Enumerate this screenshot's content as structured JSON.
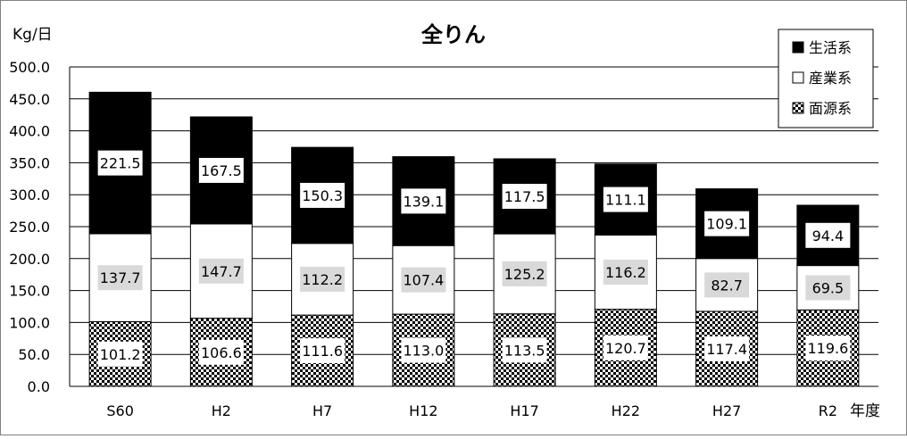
{
  "chart_data": {
    "type": "bar",
    "stacked": true,
    "title": "全りん",
    "ylabel": "Kg/日",
    "xlabel": "年度",
    "ylim": [
      0,
      500
    ],
    "yticks": [
      "0.0",
      "50.0",
      "100.0",
      "150.0",
      "200.0",
      "250.0",
      "300.0",
      "350.0",
      "400.0",
      "450.0",
      "500.0"
    ],
    "categories": [
      "S60",
      "H2",
      "H7",
      "H12",
      "H17",
      "H22",
      "H27",
      "R2"
    ],
    "series": [
      {
        "name": "面源系",
        "pattern": "checker",
        "values": [
          101.2,
          106.6,
          111.6,
          113.0,
          113.5,
          120.7,
          117.4,
          119.6
        ],
        "labels": [
          "101.2",
          "106.6",
          "111.6",
          "113.0",
          "113.5",
          "120.7",
          "117.4",
          "119.6"
        ]
      },
      {
        "name": "産業系",
        "pattern": "white",
        "values": [
          137.7,
          147.7,
          112.2,
          107.4,
          125.2,
          116.2,
          82.7,
          69.5
        ],
        "labels": [
          "137.7",
          "147.7",
          "112.2",
          "107.4",
          "125.2",
          "116.2",
          "82.7",
          "69.5"
        ]
      },
      {
        "name": "生活系",
        "pattern": "black",
        "values": [
          221.5,
          167.5,
          150.3,
          139.1,
          117.5,
          111.1,
          109.1,
          94.4
        ],
        "labels": [
          "221.5",
          "167.5",
          "150.3",
          "139.1",
          "117.5",
          "111.1",
          "109.1",
          "94.4"
        ]
      }
    ],
    "legend": {
      "placement": "top-right",
      "order": [
        "生活系",
        "産業系",
        "面源系"
      ]
    },
    "grid": true,
    "colors": {
      "black": "#000000",
      "white": "#ffffff",
      "label_box_gray": "#d9d9d9",
      "gridline": "#000000"
    }
  }
}
